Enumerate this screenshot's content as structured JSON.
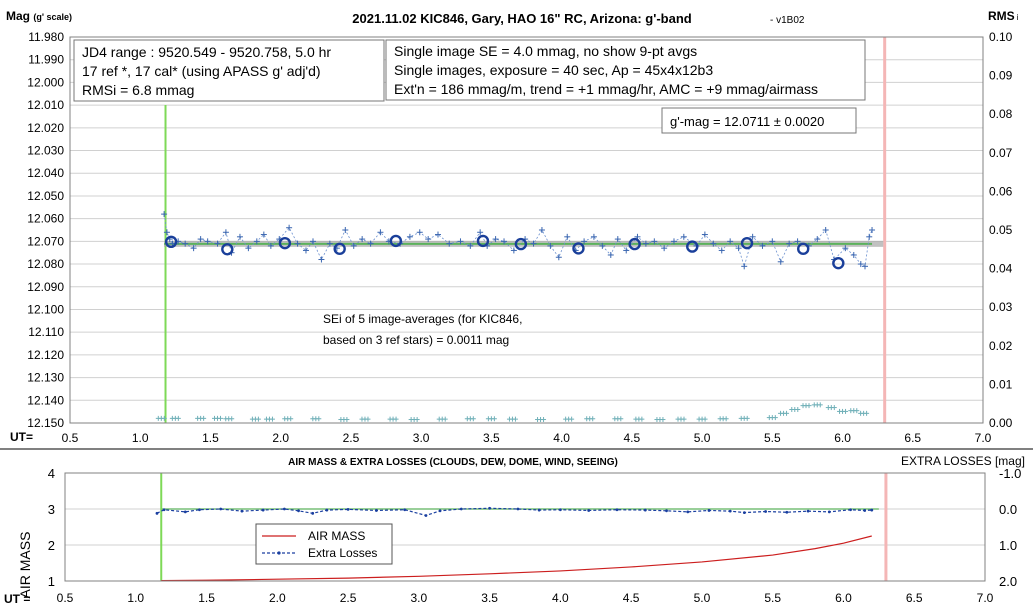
{
  "chart_data": [
    {
      "type": "scatter",
      "title": "2021.11.02 KIC846, Gary, HAO 16\" RC, Arizona: g'-band",
      "title_suffix": "- v1B02",
      "ylabel": "Mag",
      "ylabel_sub": "(g' scale)",
      "y2label": "RMS",
      "y2label_sub": "i",
      "xlabel": "UT=",
      "xlim": [
        0.5,
        7.0
      ],
      "x_ticks": [
        "0.5",
        "1.0",
        "1.5",
        "2.0",
        "2.5",
        "3.0",
        "3.5",
        "4.0",
        "4.5",
        "5.0",
        "5.5",
        "6.0",
        "6.5",
        "7.0"
      ],
      "ylim": [
        11.98,
        12.15
      ],
      "y_reversed": true,
      "y_ticks": [
        "11.980",
        "11.990",
        "12.000",
        "12.010",
        "12.020",
        "12.030",
        "12.040",
        "12.050",
        "12.060",
        "12.070",
        "12.080",
        "12.090",
        "12.100",
        "12.110",
        "12.120",
        "12.130",
        "12.140",
        "12.150"
      ],
      "y2lim": [
        0.0,
        0.1
      ],
      "y2_ticks": [
        "0.10",
        "0.09",
        "0.08",
        "0.07",
        "0.06",
        "0.05",
        "0.04",
        "0.03",
        "0.02",
        "0.01",
        "0.00"
      ],
      "grid": true,
      "fit_mag": 12.0711,
      "start_marker_ut": 1.18,
      "end_marker_ut": 6.3,
      "colors": {
        "points": "#3a66b0",
        "averages": "#1a3f9a",
        "fit": "#5cb25c",
        "fit_gray": "#a8a8a8",
        "rms": "#70b0b8",
        "start": "#7ed957",
        "end": "#f4b6b6"
      },
      "annotations": {
        "box1": [
          "JD4 range : 9520.549 - 9520.758,  5.0  hr",
          "17 ref *, 17 cal* (using APASS g' adj'd)",
          "RMSi = 6.8 mmag"
        ],
        "box2": [
          "Single image SE = 4.0 mmag, no show  9-pt avgs",
          "Single images, exposure = 40 sec, Ap = 45x4x12b3",
          "Ext'n = 186 mmag/m, trend = +1 mmag/hr, AMC = +9 mmag/airmass"
        ],
        "box3": "g'-mag = 12.0711 ± 0.0020",
        "note": [
          "SEi of 5 image-averages (for KIC846,",
          "based on 3 ref stars) = 0.0011 mag"
        ]
      },
      "image_averages": [
        {
          "x": 1.22,
          "y": 12.0702
        },
        {
          "x": 1.62,
          "y": 12.0735
        },
        {
          "x": 2.03,
          "y": 12.0708
        },
        {
          "x": 2.42,
          "y": 12.0733
        },
        {
          "x": 2.82,
          "y": 12.0698
        },
        {
          "x": 3.44,
          "y": 12.0698
        },
        {
          "x": 3.71,
          "y": 12.0712
        },
        {
          "x": 4.12,
          "y": 12.0731
        },
        {
          "x": 4.52,
          "y": 12.0712
        },
        {
          "x": 4.93,
          "y": 12.0723
        },
        {
          "x": 5.32,
          "y": 12.0708
        },
        {
          "x": 5.72,
          "y": 12.0733
        },
        {
          "x": 5.97,
          "y": 12.0796
        }
      ],
      "single_images": [
        {
          "x": 1.17,
          "y": 12.058
        },
        {
          "x": 1.19,
          "y": 12.066
        },
        {
          "x": 1.21,
          "y": 12.069
        },
        {
          "x": 1.23,
          "y": 12.071
        },
        {
          "x": 1.27,
          "y": 12.07
        },
        {
          "x": 1.32,
          "y": 12.071
        },
        {
          "x": 1.38,
          "y": 12.073
        },
        {
          "x": 1.43,
          "y": 12.069
        },
        {
          "x": 1.48,
          "y": 12.07
        },
        {
          "x": 1.55,
          "y": 12.071
        },
        {
          "x": 1.61,
          "y": 12.066
        },
        {
          "x": 1.65,
          "y": 12.075
        },
        {
          "x": 1.71,
          "y": 12.068
        },
        {
          "x": 1.77,
          "y": 12.073
        },
        {
          "x": 1.83,
          "y": 12.07
        },
        {
          "x": 1.88,
          "y": 12.067
        },
        {
          "x": 1.93,
          "y": 12.072
        },
        {
          "x": 1.99,
          "y": 12.069
        },
        {
          "x": 2.06,
          "y": 12.064
        },
        {
          "x": 2.12,
          "y": 12.071
        },
        {
          "x": 2.18,
          "y": 12.074
        },
        {
          "x": 2.23,
          "y": 12.07
        },
        {
          "x": 2.29,
          "y": 12.078
        },
        {
          "x": 2.35,
          "y": 12.071
        },
        {
          "x": 2.4,
          "y": 12.073
        },
        {
          "x": 2.46,
          "y": 12.065
        },
        {
          "x": 2.52,
          "y": 12.072
        },
        {
          "x": 2.58,
          "y": 12.069
        },
        {
          "x": 2.64,
          "y": 12.071
        },
        {
          "x": 2.71,
          "y": 12.066
        },
        {
          "x": 2.77,
          "y": 12.07
        },
        {
          "x": 2.85,
          "y": 12.071
        },
        {
          "x": 2.92,
          "y": 12.068
        },
        {
          "x": 2.99,
          "y": 12.066
        },
        {
          "x": 3.05,
          "y": 12.069
        },
        {
          "x": 3.12,
          "y": 12.067
        },
        {
          "x": 3.2,
          "y": 12.071
        },
        {
          "x": 3.28,
          "y": 12.07
        },
        {
          "x": 3.35,
          "y": 12.072
        },
        {
          "x": 3.42,
          "y": 12.066
        },
        {
          "x": 3.47,
          "y": 12.072
        },
        {
          "x": 3.53,
          "y": 12.069
        },
        {
          "x": 3.59,
          "y": 12.07
        },
        {
          "x": 3.66,
          "y": 12.074
        },
        {
          "x": 3.74,
          "y": 12.069
        },
        {
          "x": 3.8,
          "y": 12.071
        },
        {
          "x": 3.86,
          "y": 12.065
        },
        {
          "x": 3.92,
          "y": 12.072
        },
        {
          "x": 3.98,
          "y": 12.077
        },
        {
          "x": 4.04,
          "y": 12.068
        },
        {
          "x": 4.1,
          "y": 12.074
        },
        {
          "x": 4.16,
          "y": 12.07
        },
        {
          "x": 4.23,
          "y": 12.068
        },
        {
          "x": 4.29,
          "y": 12.072
        },
        {
          "x": 4.35,
          "y": 12.076
        },
        {
          "x": 4.4,
          "y": 12.069
        },
        {
          "x": 4.46,
          "y": 12.074
        },
        {
          "x": 4.54,
          "y": 12.068
        },
        {
          "x": 4.6,
          "y": 12.071
        },
        {
          "x": 4.66,
          "y": 12.07
        },
        {
          "x": 4.73,
          "y": 12.073
        },
        {
          "x": 4.8,
          "y": 12.07
        },
        {
          "x": 4.87,
          "y": 12.068
        },
        {
          "x": 4.96,
          "y": 12.072
        },
        {
          "x": 5.02,
          "y": 12.067
        },
        {
          "x": 5.08,
          "y": 12.071
        },
        {
          "x": 5.14,
          "y": 12.074
        },
        {
          "x": 5.2,
          "y": 12.07
        },
        {
          "x": 5.26,
          "y": 12.073
        },
        {
          "x": 5.3,
          "y": 12.081
        },
        {
          "x": 5.36,
          "y": 12.068
        },
        {
          "x": 5.43,
          "y": 12.072
        },
        {
          "x": 5.5,
          "y": 12.07
        },
        {
          "x": 5.56,
          "y": 12.079
        },
        {
          "x": 5.62,
          "y": 12.071
        },
        {
          "x": 5.68,
          "y": 12.07
        },
        {
          "x": 5.76,
          "y": 12.072
        },
        {
          "x": 5.82,
          "y": 12.069
        },
        {
          "x": 5.88,
          "y": 12.065
        },
        {
          "x": 5.94,
          "y": 12.078
        },
        {
          "x": 6.02,
          "y": 12.073
        },
        {
          "x": 6.08,
          "y": 12.076
        },
        {
          "x": 6.13,
          "y": 12.08
        },
        {
          "x": 6.16,
          "y": 12.081
        },
        {
          "x": 6.19,
          "y": 12.068
        },
        {
          "x": 6.21,
          "y": 12.065
        }
      ],
      "rms_series": [
        {
          "x": 1.15,
          "y": 0.0012
        },
        {
          "x": 1.25,
          "y": 0.0012
        },
        {
          "x": 1.43,
          "y": 0.0012
        },
        {
          "x": 1.55,
          "y": 0.0012
        },
        {
          "x": 1.63,
          "y": 0.0011
        },
        {
          "x": 1.82,
          "y": 0.001
        },
        {
          "x": 1.92,
          "y": 0.001
        },
        {
          "x": 2.05,
          "y": 0.0011
        },
        {
          "x": 2.25,
          "y": 0.0011
        },
        {
          "x": 2.45,
          "y": 0.0009
        },
        {
          "x": 2.6,
          "y": 0.001
        },
        {
          "x": 2.8,
          "y": 0.001
        },
        {
          "x": 2.95,
          "y": 0.0009
        },
        {
          "x": 3.15,
          "y": 0.001
        },
        {
          "x": 3.35,
          "y": 0.0011
        },
        {
          "x": 3.5,
          "y": 0.0011
        },
        {
          "x": 3.65,
          "y": 0.001
        },
        {
          "x": 3.85,
          "y": 0.0009
        },
        {
          "x": 4.05,
          "y": 0.001
        },
        {
          "x": 4.2,
          "y": 0.0011
        },
        {
          "x": 4.4,
          "y": 0.0011
        },
        {
          "x": 4.55,
          "y": 0.001
        },
        {
          "x": 4.7,
          "y": 0.0009
        },
        {
          "x": 4.85,
          "y": 0.001
        },
        {
          "x": 5.0,
          "y": 0.001
        },
        {
          "x": 5.15,
          "y": 0.0011
        },
        {
          "x": 5.3,
          "y": 0.0012
        },
        {
          "x": 5.5,
          "y": 0.0014
        },
        {
          "x": 5.58,
          "y": 0.0025
        },
        {
          "x": 5.66,
          "y": 0.0035
        },
        {
          "x": 5.74,
          "y": 0.0045
        },
        {
          "x": 5.82,
          "y": 0.0047
        },
        {
          "x": 5.92,
          "y": 0.004
        },
        {
          "x": 6.0,
          "y": 0.003
        },
        {
          "x": 6.08,
          "y": 0.0032
        },
        {
          "x": 6.15,
          "y": 0.0025
        }
      ]
    },
    {
      "type": "line",
      "title": "AIR MASS & EXTRA LOSSES (CLOUDS, DEW, DOME, WIND, SEEING)",
      "ylabel": "AIR MASS",
      "y2label": "EXTRA LOSSES [mag]",
      "xlabel": "UT =",
      "xlim": [
        0.5,
        7.0
      ],
      "x_ticks": [
        "0.5",
        "1.0",
        "1.5",
        "2.0",
        "2.5",
        "3.0",
        "3.5",
        "4.0",
        "4.5",
        "5.0",
        "5.5",
        "6.0",
        "6.5",
        "7.0"
      ],
      "ylim": [
        1,
        4
      ],
      "y_ticks": [
        "4",
        "3",
        "2",
        "1"
      ],
      "y2lim": [
        -1.0,
        2.0
      ],
      "y2_reversed": true,
      "y2_ticks": [
        "-1.0",
        "0.0",
        "1.0",
        "2.0"
      ],
      "legend": [
        "AIR MASS",
        "Extra Losses"
      ],
      "legend_placement": "bottom-center",
      "colors": {
        "air_mass": "#cc1e1e",
        "extra_losses": "#1a3fa0",
        "zero_line": "#5cb25c"
      },
      "air_mass": [
        {
          "x": 1.18,
          "y": 1.01
        },
        {
          "x": 1.5,
          "y": 1.02
        },
        {
          "x": 2.0,
          "y": 1.05
        },
        {
          "x": 2.5,
          "y": 1.08
        },
        {
          "x": 3.0,
          "y": 1.13
        },
        {
          "x": 3.5,
          "y": 1.2
        },
        {
          "x": 4.0,
          "y": 1.28
        },
        {
          "x": 4.5,
          "y": 1.39
        },
        {
          "x": 5.0,
          "y": 1.53
        },
        {
          "x": 5.5,
          "y": 1.72
        },
        {
          "x": 5.8,
          "y": 1.9
        },
        {
          "x": 6.0,
          "y": 2.05
        },
        {
          "x": 6.2,
          "y": 2.25
        }
      ],
      "extra_losses": [
        {
          "x": 1.15,
          "y": 0.12
        },
        {
          "x": 1.2,
          "y": 0.02
        },
        {
          "x": 1.35,
          "y": 0.08
        },
        {
          "x": 1.45,
          "y": 0.02
        },
        {
          "x": 1.6,
          "y": 0.0
        },
        {
          "x": 1.75,
          "y": 0.06
        },
        {
          "x": 1.9,
          "y": 0.03
        },
        {
          "x": 2.05,
          "y": 0.0
        },
        {
          "x": 2.15,
          "y": 0.05
        },
        {
          "x": 2.25,
          "y": 0.12
        },
        {
          "x": 2.35,
          "y": 0.03
        },
        {
          "x": 2.5,
          "y": 0.01
        },
        {
          "x": 2.7,
          "y": 0.04
        },
        {
          "x": 2.9,
          "y": 0.02
        },
        {
          "x": 3.05,
          "y": 0.18
        },
        {
          "x": 3.15,
          "y": 0.05
        },
        {
          "x": 3.3,
          "y": 0.0
        },
        {
          "x": 3.5,
          "y": -0.02
        },
        {
          "x": 3.7,
          "y": 0.0
        },
        {
          "x": 3.85,
          "y": 0.03
        },
        {
          "x": 4.0,
          "y": 0.02
        },
        {
          "x": 4.2,
          "y": 0.04
        },
        {
          "x": 4.4,
          "y": 0.02
        },
        {
          "x": 4.6,
          "y": 0.03
        },
        {
          "x": 4.75,
          "y": 0.05
        },
        {
          "x": 4.9,
          "y": 0.08
        },
        {
          "x": 5.05,
          "y": 0.04
        },
        {
          "x": 5.2,
          "y": 0.06
        },
        {
          "x": 5.3,
          "y": 0.1
        },
        {
          "x": 5.45,
          "y": 0.07
        },
        {
          "x": 5.6,
          "y": 0.09
        },
        {
          "x": 5.75,
          "y": 0.06
        },
        {
          "x": 5.9,
          "y": 0.08
        },
        {
          "x": 6.05,
          "y": 0.02
        },
        {
          "x": 6.15,
          "y": 0.04
        },
        {
          "x": 6.2,
          "y": 0.03
        }
      ]
    }
  ]
}
